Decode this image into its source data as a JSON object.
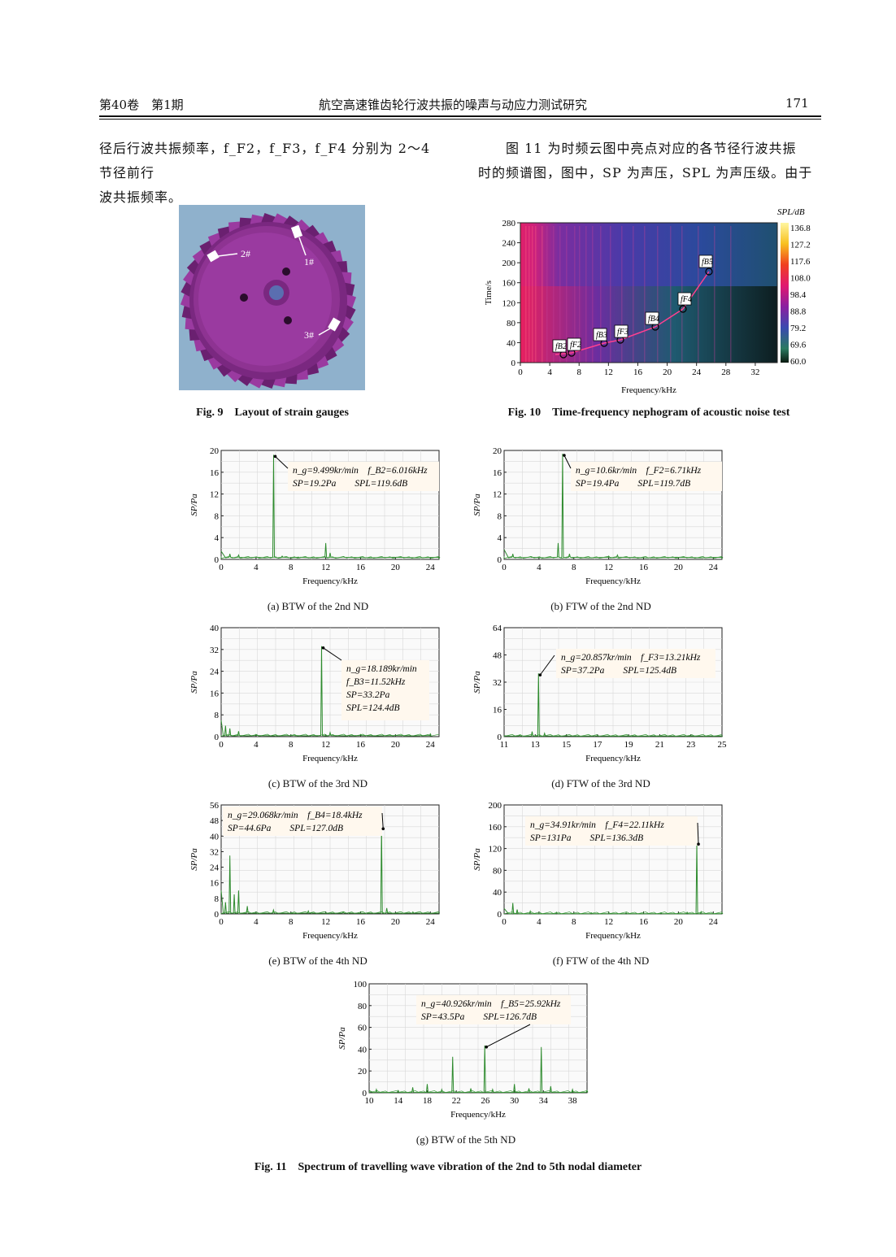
{
  "header": {
    "left": "第40卷　第1期",
    "center": "航空高速锥齿轮行波共振的噪声与动应力测试研究",
    "page": "171"
  },
  "text_left": {
    "line1": "径后行波共振频率，f_F2，f_F3，f_F4 分别为 2～4 节径前行",
    "line2": "波共振频率。"
  },
  "text_right": {
    "line1": "图 11 为时频云图中亮点对应的各节径行波共振",
    "line2": "时的频谱图，图中，SP 为声压，SPL 为声压级。由于"
  },
  "fig9": {
    "caption": "Fig. 9　Layout of strain gauges",
    "labels": [
      "1#",
      "2#",
      "3#"
    ],
    "colors": {
      "background": "#8fb1cc",
      "gear": "#8a2f8c"
    }
  },
  "fig10": {
    "caption": "Fig. 10　Time-frequency nephogram of acoustic noise test",
    "xlabel": "Frequency/kHz",
    "ylabel": "Time/s",
    "cbar_label": "SPL/dB",
    "xticks": [
      "0",
      "4",
      "8",
      "12",
      "16",
      "20",
      "24",
      "28",
      "32"
    ],
    "yticks": [
      "0",
      "40",
      "80",
      "120",
      "160",
      "200",
      "240",
      "280"
    ],
    "cbar_ticks": [
      "136.8",
      "127.2",
      "117.6",
      "108.0",
      "98.4",
      "88.8",
      "79.2",
      "69.6",
      "60.0"
    ],
    "marker_labels": [
      "f_B2",
      "f_F2",
      "f_B3",
      "f_F3",
      "f_B4",
      "f_F4",
      "f_B5"
    ]
  },
  "fig11": {
    "caption": "Fig. 11　Spectrum of travelling wave vibration of the 2nd to 5th nodal diameter",
    "xlabel": "Frequency/kHz",
    "ylabel": "SP/Pa",
    "panels": [
      {
        "id": "a",
        "caption": "(a) BTW of the 2nd ND",
        "note1": "n_g=9.499kr/min　f_B2=6.016kHz",
        "note2": "SP=19.2Pa　　SPL=119.6dB",
        "xticks": [
          "0",
          "4",
          "8",
          "12",
          "16",
          "20",
          "24"
        ],
        "yticks": [
          "0",
          "4",
          "8",
          "12",
          "16",
          "20"
        ]
      },
      {
        "id": "b",
        "caption": "(b) FTW of the 2nd ND",
        "note1": "n_g=10.6kr/min　f_F2=6.71kHz",
        "note2": "SP=19.4Pa　　SPL=119.7dB",
        "xticks": [
          "0",
          "4",
          "8",
          "12",
          "16",
          "20",
          "24"
        ],
        "yticks": [
          "0",
          "4",
          "8",
          "12",
          "16",
          "20"
        ]
      },
      {
        "id": "c",
        "caption": "(c) BTW of the 3rd ND",
        "note1": "n_g=18.189kr/min",
        "note2": "f_B3=11.52kHz",
        "note3": "SP=33.2Pa",
        "note4": "SPL=124.4dB",
        "xticks": [
          "0",
          "4",
          "8",
          "12",
          "16",
          "20",
          "24"
        ],
        "yticks": [
          "0",
          "8",
          "16",
          "24",
          "32",
          "40"
        ]
      },
      {
        "id": "d",
        "caption": "(d) FTW of the 3rd ND",
        "note1": "n_g=20.857kr/min　f_F3=13.21kHz",
        "note2": "SP=37.2Pa　　SPL=125.4dB",
        "xticks": [
          "11",
          "13",
          "15",
          "17",
          "19",
          "21",
          "23",
          "25"
        ],
        "yticks": [
          "0",
          "16",
          "32",
          "48",
          "64"
        ]
      },
      {
        "id": "e",
        "caption": "(e) BTW of the 4th ND",
        "note1": "n_g=29.068kr/min　f_B4=18.4kHz",
        "note2": "SP=44.6Pa　　SPL=127.0dB",
        "xticks": [
          "0",
          "4",
          "8",
          "12",
          "16",
          "20",
          "24"
        ],
        "yticks": [
          "0",
          "8",
          "16",
          "24",
          "32",
          "40",
          "48",
          "56"
        ]
      },
      {
        "id": "f",
        "caption": "(f) FTW of the 4th ND",
        "note1": "n_g=34.91kr/min　f_F4=22.11kHz",
        "note2": "SP=131Pa　　SPL=136.3dB",
        "xticks": [
          "0",
          "4",
          "8",
          "12",
          "16",
          "20",
          "24"
        ],
        "yticks": [
          "0",
          "40",
          "80",
          "120",
          "160",
          "200"
        ]
      },
      {
        "id": "g",
        "caption": "(g) BTW of the 5th ND",
        "note1": "n_g=40.926kr/min　f_B5=25.92kHz",
        "note2": "SP=43.5Pa　　SPL=126.7dB",
        "xticks": [
          "10",
          "14",
          "18",
          "22",
          "26",
          "30",
          "34",
          "38"
        ],
        "yticks": [
          "0",
          "20",
          "40",
          "60",
          "80",
          "100"
        ]
      }
    ]
  },
  "chart_data": [
    {
      "type": "line",
      "id": "a",
      "x": [
        0,
        1,
        2,
        4,
        6.016,
        7,
        9,
        12,
        12.5,
        14,
        20,
        25
      ],
      "y": [
        1.5,
        1,
        0.8,
        0.4,
        19.2,
        0.6,
        0.3,
        3,
        1.2,
        0.5,
        0.3,
        0.2
      ],
      "xlim": [
        0,
        25
      ],
      "ylim": [
        0,
        20
      ],
      "xlabel": "Frequency/kHz",
      "ylabel": "SP/Pa"
    },
    {
      "type": "line",
      "id": "b",
      "x": [
        0,
        1,
        3,
        6.2,
        6.71,
        7.5,
        12,
        13,
        20,
        25
      ],
      "y": [
        1.8,
        1,
        0.5,
        3,
        19.4,
        1,
        0.6,
        0.8,
        0.3,
        0.2
      ],
      "xlim": [
        0,
        25
      ],
      "ylim": [
        0,
        20
      ],
      "xlabel": "Frequency/kHz",
      "ylabel": "SP/Pa"
    },
    {
      "type": "line",
      "id": "c",
      "x": [
        0,
        0.5,
        1,
        2,
        4,
        8,
        11.52,
        12.5,
        16,
        20,
        24
      ],
      "y": [
        6,
        4,
        3,
        2,
        0.8,
        0.6,
        33.2,
        1.5,
        0.8,
        0.6,
        1
      ],
      "xlim": [
        0,
        25
      ],
      "ylim": [
        0,
        40
      ],
      "xlabel": "Frequency/kHz",
      "ylabel": "SP/Pa"
    },
    {
      "type": "line",
      "id": "d",
      "x": [
        11,
        12,
        12.8,
        13.21,
        13.6,
        15,
        17,
        19,
        21,
        23,
        25
      ],
      "y": [
        0.5,
        1,
        3,
        37.2,
        2,
        0.8,
        0.5,
        0.3,
        0.2,
        0.2,
        0.2
      ],
      "xlim": [
        11,
        25
      ],
      "ylim": [
        0,
        64
      ],
      "xlabel": "Frequency/kHz",
      "ylabel": "SP/Pa"
    },
    {
      "type": "line",
      "id": "e",
      "x": [
        0,
        0.5,
        1,
        1.5,
        2,
        3,
        6,
        10,
        14,
        18.4,
        19,
        22,
        25
      ],
      "y": [
        12,
        6,
        30,
        10,
        12,
        4,
        2,
        1.5,
        1,
        44.6,
        3,
        1,
        0.5
      ],
      "xlim": [
        0,
        25
      ],
      "ylim": [
        0,
        56
      ],
      "xlabel": "Frequency/kHz",
      "ylabel": "SP/Pa"
    },
    {
      "type": "line",
      "id": "f",
      "x": [
        0,
        1,
        1.5,
        3,
        6,
        10,
        14,
        18,
        21,
        22.11,
        22.6,
        25
      ],
      "y": [
        10,
        20,
        8,
        5,
        3,
        2,
        2,
        2,
        3,
        131,
        4,
        2
      ],
      "xlim": [
        0,
        25
      ],
      "ylim": [
        0,
        200
      ],
      "xlabel": "Frequency/kHz",
      "ylabel": "SP/Pa"
    },
    {
      "type": "line",
      "id": "g",
      "x": [
        10,
        11,
        14,
        16,
        18,
        20,
        21.5,
        24,
        25.92,
        27,
        30,
        32,
        33.7,
        35,
        38,
        40
      ],
      "y": [
        2,
        3,
        2,
        5,
        8,
        3,
        33,
        4,
        43.5,
        3,
        8,
        4,
        42,
        6,
        3,
        2
      ],
      "xlim": [
        10,
        40
      ],
      "ylim": [
        0,
        100
      ],
      "xlabel": "Frequency/kHz",
      "ylabel": "SP/Pa"
    }
  ]
}
